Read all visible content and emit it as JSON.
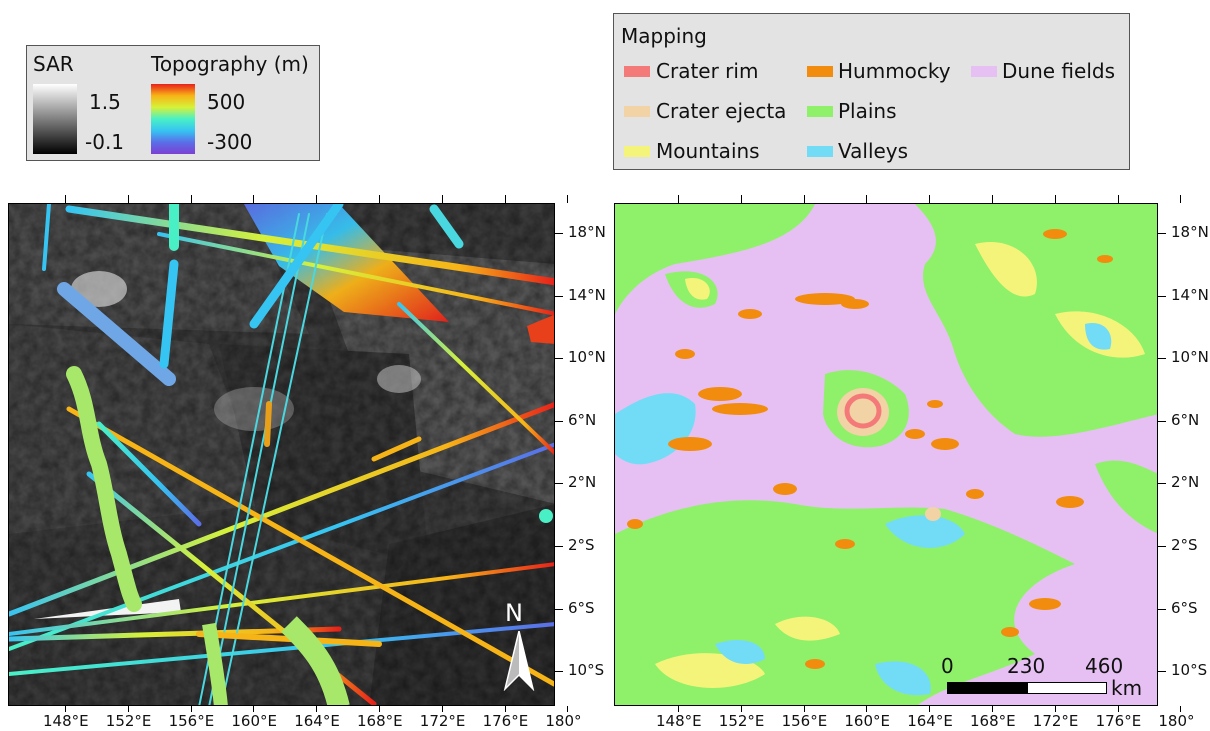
{
  "left_legend": {
    "sar": {
      "title": "SAR",
      "max": "1.5",
      "min": "-0.1"
    },
    "topography": {
      "title": "Topography (m)",
      "max": "500",
      "min": "-300"
    }
  },
  "mapping_legend": {
    "title": "Mapping",
    "items": [
      {
        "label": "Crater rim",
        "color": "#f47a7a"
      },
      {
        "label": "Hummocky",
        "color": "#f28c0f"
      },
      {
        "label": "Dune fields",
        "color": "#e6c0f2"
      },
      {
        "label": "Crater ejecta",
        "color": "#f1d3a6"
      },
      {
        "label": "Plains",
        "color": "#8ff06a"
      },
      {
        "label": "Mountains",
        "color": "#f5f47a"
      },
      {
        "label": "Valleys",
        "color": "#72dcf7"
      }
    ]
  },
  "axes": {
    "longitude_labels": [
      "148°E",
      "152°E",
      "156°E",
      "160°E",
      "164°E",
      "168°E",
      "172°E",
      "176°E",
      "180°"
    ],
    "latitude_labels": [
      "18°N",
      "14°N",
      "10°N",
      "6°N",
      "2°N",
      "2°S",
      "6°S",
      "10°S"
    ]
  },
  "north_arrow": {
    "label": "N"
  },
  "scale_bar": {
    "ticks": [
      "0",
      "230",
      "460"
    ],
    "unit": "km"
  }
}
